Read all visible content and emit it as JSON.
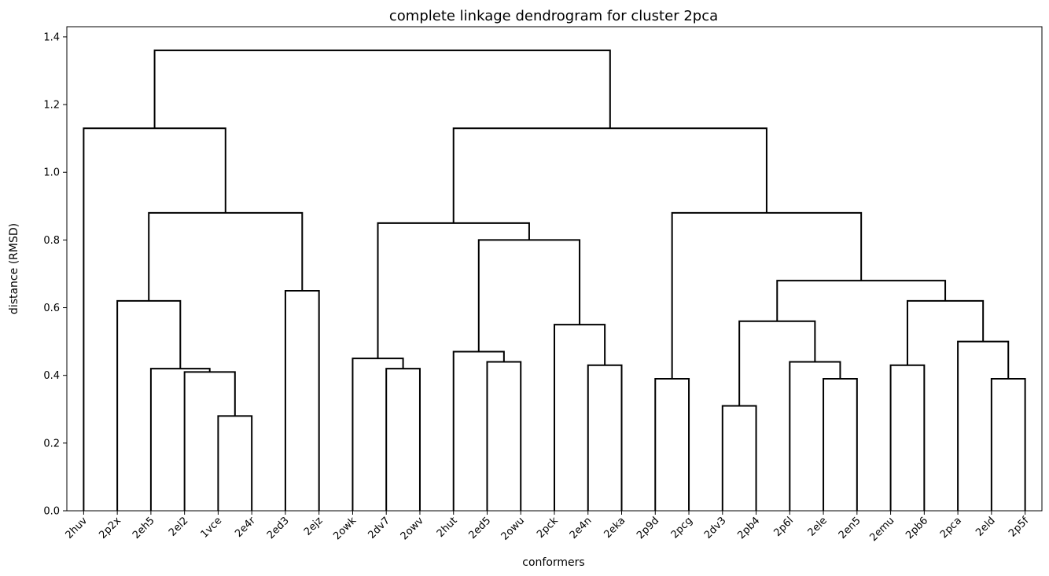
{
  "chart_data": {
    "type": "dendrogram",
    "title": "complete linkage dendrogram for cluster 2pca",
    "xlabel": "conformers",
    "ylabel": "distance (RMSD)",
    "ylim": [
      0,
      1.43
    ],
    "yticks": [
      0.0,
      0.2,
      0.4,
      0.6,
      0.8,
      1.0,
      1.2,
      1.4
    ],
    "ytick_labels": [
      "0.0",
      "0.2",
      "0.4",
      "0.6",
      "0.8",
      "1.0",
      "1.2",
      "1.4"
    ],
    "grid": false,
    "line_color": "#000000",
    "leaves": [
      "2huv",
      "2p2x",
      "2eh5",
      "2el2",
      "1vce",
      "2e4r",
      "2ed3",
      "2ejz",
      "2owk",
      "2dv7",
      "2owv",
      "2hut",
      "2ed5",
      "2owu",
      "2pck",
      "2e4n",
      "2eka",
      "2p9d",
      "2pcg",
      "2dv3",
      "2pb4",
      "2p6l",
      "2ele",
      "2en5",
      "2emu",
      "2pb6",
      "2pca",
      "2eld",
      "2p5f"
    ],
    "merges": [
      {
        "a": "L:1vce",
        "b": "L:2e4r",
        "height": 0.28,
        "id": "m1"
      },
      {
        "a": "L:2el2",
        "b": "N:m1",
        "height": 0.41,
        "id": "m2"
      },
      {
        "a": "L:2eh5",
        "b": "N:m2",
        "height": 0.42,
        "id": "m3"
      },
      {
        "a": "L:2p2x",
        "b": "N:m3",
        "height": 0.62,
        "id": "m4"
      },
      {
        "a": "L:2ed3",
        "b": "L:2ejz",
        "height": 0.65,
        "id": "m5"
      },
      {
        "a": "N:m4",
        "b": "N:m5",
        "height": 0.88,
        "id": "m6"
      },
      {
        "a": "L:2huv",
        "b": "N:m6",
        "height": 1.13,
        "id": "m7"
      },
      {
        "a": "L:2dv7",
        "b": "L:2owv",
        "height": 0.42,
        "id": "m8"
      },
      {
        "a": "L:2owk",
        "b": "N:m8",
        "height": 0.45,
        "id": "m9"
      },
      {
        "a": "L:2ed5",
        "b": "L:2owu",
        "height": 0.44,
        "id": "m10"
      },
      {
        "a": "L:2hut",
        "b": "N:m10",
        "height": 0.47,
        "id": "m11"
      },
      {
        "a": "L:2e4n",
        "b": "L:2eka",
        "height": 0.43,
        "id": "m12"
      },
      {
        "a": "L:2pck",
        "b": "N:m12",
        "height": 0.55,
        "id": "m13"
      },
      {
        "a": "N:m11",
        "b": "N:m13",
        "height": 0.8,
        "id": "m14"
      },
      {
        "a": "N:m9",
        "b": "N:m14",
        "height": 0.85,
        "id": "m15"
      },
      {
        "a": "L:2p9d",
        "b": "L:2pcg",
        "height": 0.39,
        "id": "m16"
      },
      {
        "a": "L:2dv3",
        "b": "L:2pb4",
        "height": 0.31,
        "id": "m17"
      },
      {
        "a": "L:2ele",
        "b": "L:2en5",
        "height": 0.39,
        "id": "m18"
      },
      {
        "a": "L:2p6l",
        "b": "N:m18",
        "height": 0.44,
        "id": "m19"
      },
      {
        "a": "N:m17",
        "b": "N:m19",
        "height": 0.56,
        "id": "m20"
      },
      {
        "a": "L:2emu",
        "b": "L:2pb6",
        "height": 0.43,
        "id": "m21"
      },
      {
        "a": "L:2eld",
        "b": "L:2p5f",
        "height": 0.39,
        "id": "m22"
      },
      {
        "a": "L:2pca",
        "b": "N:m22",
        "height": 0.5,
        "id": "m23"
      },
      {
        "a": "N:m21",
        "b": "N:m23",
        "height": 0.62,
        "id": "m24"
      },
      {
        "a": "N:m20",
        "b": "N:m24",
        "height": 0.68,
        "id": "m25"
      },
      {
        "a": "N:m16",
        "b": "N:m25",
        "height": 0.88,
        "id": "m26"
      },
      {
        "a": "N:m15",
        "b": "N:m26",
        "height": 1.13,
        "id": "m27"
      },
      {
        "a": "N:m7",
        "b": "N:m27",
        "height": 1.36,
        "id": "m28"
      }
    ]
  }
}
